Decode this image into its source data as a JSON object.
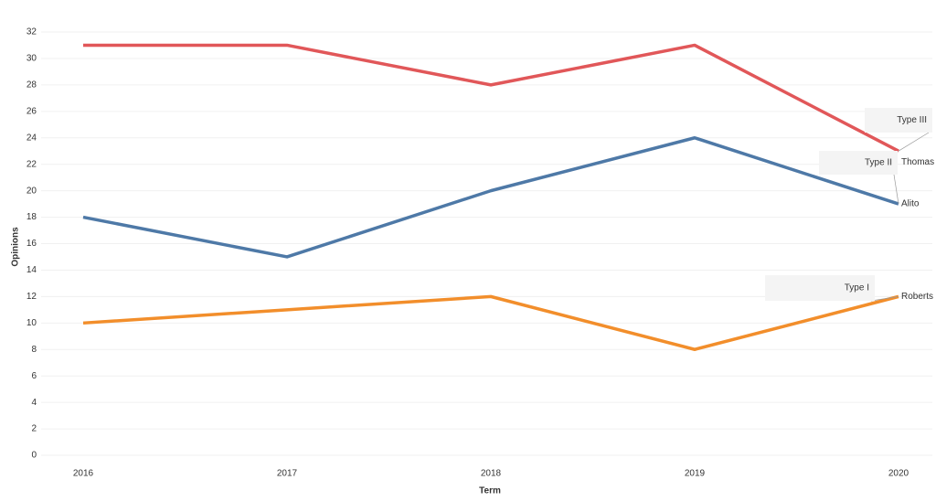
{
  "chart_data": {
    "type": "line",
    "x_label": "Term",
    "y_label": "Opinions",
    "categories": [
      "2016",
      "2017",
      "2018",
      "2019",
      "2020"
    ],
    "series": [
      {
        "name": "Thomas",
        "color": "#e15759",
        "values": [
          31,
          31,
          28,
          31,
          23
        ],
        "annotation": "Type III"
      },
      {
        "name": "Alito",
        "color": "#4e79a7",
        "values": [
          18,
          15,
          20,
          24,
          19
        ],
        "annotation": "Type II"
      },
      {
        "name": "Roberts",
        "color": "#f28e2b",
        "values": [
          10,
          11,
          12,
          8,
          12
        ],
        "annotation": "Type I"
      }
    ],
    "ylim": [
      0,
      32
    ],
    "yticks": [
      0,
      2,
      4,
      6,
      8,
      10,
      12,
      14,
      16,
      18,
      20,
      22,
      24,
      26,
      28,
      30,
      32
    ],
    "grid": true
  }
}
